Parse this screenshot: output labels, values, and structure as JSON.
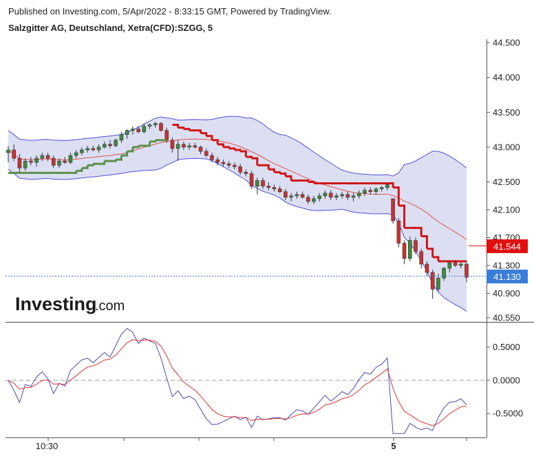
{
  "header": {
    "published": "Published on Investing.com, 5/Apr/2022 - 8:33:15 GMT, Powered by TradingView.",
    "title": "Salzgitter AG, Deutschland, Xetra(CFD):SZGG, 5"
  },
  "logo": {
    "bold": "Investing",
    "dom": ".com"
  },
  "colors": {
    "band_fill": "#dcdff2",
    "band_line": "#4f4fdc",
    "mid_line": "#e05050",
    "up": "#3c8c3c",
    "down": "#c83232",
    "st_up": "#5a8f4a",
    "st_down": "#d21414",
    "osc_main": "#4a4ab8",
    "osc_signal": "#e03030",
    "last_tag": "#3a7dd8",
    "st_tag": "#e01010"
  },
  "chart_data": [
    {
      "type": "candlestick",
      "title": "Salzgitter AG, Deutschland, Xetra(CFD):SZGG, 5",
      "y_ticks": [
        "44.500",
        "44.000",
        "43.500",
        "43.000",
        "42.500",
        "42.100",
        "41.700",
        "41.300",
        "40.900",
        "40.550"
      ],
      "ylim": [
        40.49,
        44.55
      ],
      "last_price": "41.130",
      "supertrend_value": "41.544",
      "ohlc": [
        [
          42.92,
          43.02,
          42.78,
          42.96
        ],
        [
          42.96,
          43.04,
          42.8,
          42.84
        ],
        [
          42.84,
          42.9,
          42.62,
          42.7
        ],
        [
          42.7,
          42.84,
          42.66,
          42.8
        ],
        [
          42.8,
          42.86,
          42.74,
          42.78
        ],
        [
          42.78,
          42.88,
          42.72,
          42.84
        ],
        [
          42.84,
          42.92,
          42.8,
          42.88
        ],
        [
          42.88,
          42.92,
          42.8,
          42.84
        ],
        [
          42.84,
          42.88,
          42.7,
          42.74
        ],
        [
          42.74,
          42.84,
          42.7,
          42.8
        ],
        [
          42.8,
          42.86,
          42.76,
          42.78
        ],
        [
          42.78,
          42.92,
          42.76,
          42.88
        ],
        [
          42.88,
          42.96,
          42.84,
          42.92
        ],
        [
          42.92,
          43.0,
          42.88,
          42.96
        ],
        [
          42.96,
          43.02,
          42.92,
          42.98
        ],
        [
          42.98,
          43.02,
          42.94,
          42.96
        ],
        [
          42.96,
          43.04,
          42.92,
          43.0
        ],
        [
          43.0,
          43.08,
          42.98,
          43.04
        ],
        [
          43.04,
          43.1,
          42.98,
          43.02
        ],
        [
          43.02,
          43.12,
          43.0,
          43.1
        ],
        [
          43.1,
          43.22,
          43.06,
          43.18
        ],
        [
          43.18,
          43.26,
          43.12,
          43.24
        ],
        [
          43.24,
          43.3,
          43.18,
          43.26
        ],
        [
          43.26,
          43.3,
          43.2,
          43.22
        ],
        [
          43.22,
          43.34,
          43.2,
          43.3
        ],
        [
          43.3,
          43.34,
          43.26,
          43.32
        ],
        [
          43.32,
          43.36,
          43.28,
          43.34
        ],
        [
          43.34,
          43.36,
          43.22,
          43.24
        ],
        [
          43.24,
          43.28,
          43.06,
          43.1
        ],
        [
          43.1,
          43.14,
          42.92,
          42.98
        ],
        [
          42.98,
          43.1,
          42.8,
          43.04
        ],
        [
          43.04,
          43.08,
          42.96,
          43.0
        ],
        [
          43.0,
          43.06,
          42.96,
          43.02
        ],
        [
          43.02,
          43.06,
          42.98,
          43.0
        ],
        [
          43.0,
          43.02,
          42.9,
          42.94
        ],
        [
          42.94,
          42.98,
          42.86,
          42.88
        ],
        [
          42.88,
          42.92,
          42.78,
          42.82
        ],
        [
          42.82,
          42.86,
          42.74,
          42.78
        ],
        [
          42.78,
          42.82,
          42.72,
          42.76
        ],
        [
          42.76,
          42.8,
          42.7,
          42.74
        ],
        [
          42.74,
          42.78,
          42.68,
          42.72
        ],
        [
          42.72,
          42.76,
          42.6,
          42.64
        ],
        [
          42.64,
          42.68,
          42.58,
          42.62
        ],
        [
          42.62,
          42.66,
          42.4,
          42.44
        ],
        [
          42.44,
          42.56,
          42.32,
          42.52
        ],
        [
          42.52,
          42.56,
          42.4,
          42.44
        ],
        [
          42.44,
          42.5,
          42.38,
          42.42
        ],
        [
          42.42,
          42.46,
          42.36,
          42.4
        ],
        [
          42.4,
          42.44,
          42.34,
          42.36
        ],
        [
          42.36,
          42.4,
          42.24,
          42.28
        ],
        [
          42.28,
          42.34,
          42.22,
          42.3
        ],
        [
          42.3,
          42.36,
          42.26,
          42.32
        ],
        [
          42.32,
          42.36,
          42.26,
          42.28
        ],
        [
          42.28,
          42.32,
          42.18,
          42.22
        ],
        [
          42.22,
          42.3,
          42.18,
          42.26
        ],
        [
          42.26,
          42.34,
          42.22,
          42.3
        ],
        [
          42.3,
          42.38,
          42.26,
          42.34
        ],
        [
          42.34,
          42.38,
          42.24,
          42.28
        ],
        [
          42.28,
          42.34,
          42.24,
          42.3
        ],
        [
          42.3,
          42.36,
          42.26,
          42.32
        ],
        [
          42.32,
          42.36,
          42.24,
          42.28
        ],
        [
          42.28,
          42.34,
          42.22,
          42.3
        ],
        [
          42.3,
          42.38,
          42.26,
          42.34
        ],
        [
          42.34,
          42.42,
          42.3,
          42.38
        ],
        [
          42.38,
          42.42,
          42.32,
          42.36
        ],
        [
          42.36,
          42.42,
          42.32,
          42.4
        ],
        [
          42.4,
          42.44,
          42.36,
          42.42
        ],
        [
          42.42,
          42.48,
          42.38,
          42.46
        ],
        [
          42.26,
          42.24,
          41.9,
          41.94
        ],
        [
          41.94,
          41.98,
          41.56,
          41.62
        ],
        [
          41.62,
          41.66,
          41.32,
          41.4
        ],
        [
          41.4,
          41.72,
          41.36,
          41.66
        ],
        [
          41.66,
          41.7,
          41.46,
          41.5
        ],
        [
          41.5,
          41.54,
          41.26,
          41.32
        ],
        [
          41.32,
          41.36,
          41.14,
          41.2
        ],
        [
          41.2,
          41.24,
          40.82,
          40.96
        ],
        [
          40.96,
          41.18,
          40.92,
          41.12
        ],
        [
          41.12,
          41.28,
          41.08,
          41.26
        ],
        [
          41.26,
          41.38,
          41.2,
          41.34
        ],
        [
          41.34,
          41.38,
          41.28,
          41.3
        ],
        [
          41.3,
          41.36,
          41.26,
          41.32
        ],
        [
          41.32,
          41.36,
          41.06,
          41.13
        ]
      ]
    },
    {
      "type": "line",
      "y_ticks": [
        "0.5000",
        "0.0000",
        "-0.5000"
      ],
      "ylim": [
        -0.86,
        0.87
      ],
      "x_ticks": [
        "10:30",
        "5"
      ]
    }
  ]
}
